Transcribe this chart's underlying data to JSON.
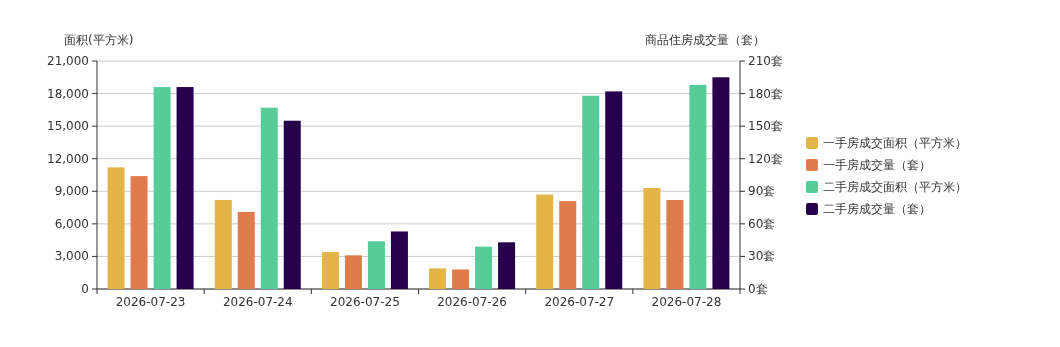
{
  "chart_data": {
    "type": "bar",
    "ylabel": "面积(平方米)",
    "y2label": "商品住房成交量（套）",
    "categories": [
      "2026-07-23",
      "2026-07-24",
      "2026-07-25",
      "2026-07-26",
      "2026-07-27",
      "2026-07-28"
    ],
    "series": [
      {
        "name": "一手房成交面积（平方米）",
        "color": "#e3b448",
        "values": [
          11200,
          8200,
          3400,
          1900,
          8700,
          9300
        ]
      },
      {
        "name": "一手房成交量（套）",
        "color": "#e07b4b",
        "axis": "y2",
        "values": [
          104,
          71,
          31,
          18,
          81,
          82
        ]
      },
      {
        "name": "二手房成交面积（平方米）",
        "color": "#56cc99",
        "values": [
          18600,
          16700,
          4400,
          3900,
          17800,
          18800
        ]
      },
      {
        "name": "二手房成交量（套）",
        "color": "#26004a",
        "axis": "y2",
        "values": [
          186,
          155,
          53,
          43,
          182,
          195
        ]
      }
    ],
    "ylim": [
      0,
      21000
    ],
    "yticks": [
      0,
      {
        "value": 3000,
        "label": "3,000"
      },
      {
        "value": 6000,
        "label": "6,000"
      },
      {
        "value": 9000,
        "label": "9,000"
      },
      {
        "value": 12000,
        "label": "12,000"
      },
      {
        "value": 15000,
        "label": "15,000"
      },
      {
        "value": 18000,
        "label": "18,000"
      },
      {
        "value": 21000,
        "label": "21,000"
      }
    ],
    "y2lim": [
      0,
      210
    ],
    "y2ticks": [
      {
        "value": 0,
        "label": "0套"
      },
      {
        "value": 30,
        "label": "30套"
      },
      {
        "value": 60,
        "label": "60套"
      },
      {
        "value": 90,
        "label": "90套"
      },
      {
        "value": 120,
        "label": "120套"
      },
      {
        "value": 150,
        "label": "150套"
      },
      {
        "value": 180,
        "label": "180套"
      },
      {
        "value": 210,
        "label": "210套"
      }
    ],
    "grid": "y",
    "legend": "right"
  }
}
